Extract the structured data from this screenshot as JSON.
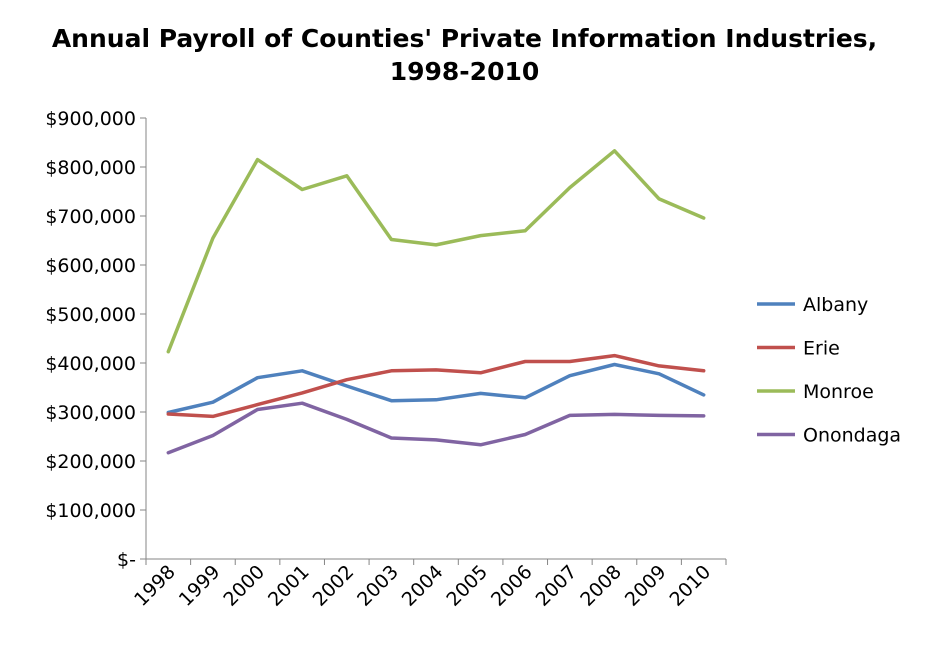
{
  "chart_data": {
    "type": "line",
    "title_lines": [
      "Annual Payroll of Counties' Private Information Industries,",
      "1998-2010"
    ],
    "xlabel": "",
    "ylabel": "",
    "x": [
      "1998",
      "1999",
      "2000",
      "2001",
      "2002",
      "2003",
      "2004",
      "2005",
      "2006",
      "2007",
      "2008",
      "2009",
      "2010"
    ],
    "ylim": [
      0,
      900000
    ],
    "ytick_values": [
      0,
      100000,
      200000,
      300000,
      400000,
      500000,
      600000,
      700000,
      800000,
      900000
    ],
    "ytick_labels": [
      "$-",
      "$100,000",
      "$200,000",
      "$300,000",
      "$400,000",
      "$500,000",
      "$600,000",
      "$700,000",
      "$800,000",
      "$900,000"
    ],
    "grid": false,
    "legend_position": "right",
    "series": [
      {
        "name": "Albany",
        "color": "#4F81BD",
        "values": [
          299000,
          320000,
          370000,
          384000,
          353000,
          323000,
          325000,
          338000,
          329000,
          374000,
          397000,
          378000,
          335000
        ]
      },
      {
        "name": "Erie",
        "color": "#C0504D",
        "values": [
          296000,
          291000,
          315000,
          339000,
          366000,
          384000,
          386000,
          380000,
          403000,
          403000,
          415000,
          394000,
          384000
        ]
      },
      {
        "name": "Monroe",
        "color": "#9BBB59",
        "values": [
          423000,
          655000,
          815000,
          754000,
          782000,
          652000,
          641000,
          660000,
          670000,
          758000,
          833000,
          735000,
          696000
        ]
      },
      {
        "name": "Onondaga",
        "color": "#8064A2",
        "values": [
          217000,
          252000,
          305000,
          318000,
          285000,
          247000,
          243000,
          233000,
          254000,
          293000,
          295000,
          293000,
          292000
        ]
      }
    ]
  }
}
